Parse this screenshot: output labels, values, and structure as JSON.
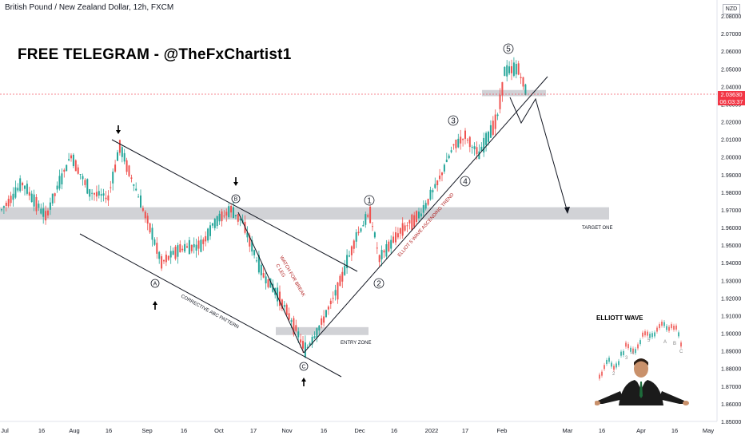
{
  "header": {
    "symbol_title": "British Pound / New Zealand Dollar, 12h, FXCM",
    "promo_text": "FREE TELEGRAM - @TheFxChartist1",
    "currency_box": "NZD"
  },
  "price_tag": {
    "price": "2.03630",
    "countdown": "06:03:37",
    "color": "#f23645"
  },
  "colors": {
    "bull": "#26a69a",
    "bear": "#ef5350",
    "zone": "#c9cacf",
    "line": "#131722",
    "annotation_red": "#b22222"
  },
  "annotations": {
    "target": "TARGET ONE",
    "entry": "ENTRY ZONE",
    "corrective": "CORRECTIVE ABC PATTERN",
    "watch": "WATCH FOR BREAK",
    "cleg": "C LEG",
    "trend": "ELLIOT 5 WAVE ASCENDING TREND"
  },
  "wave_labels": [
    "A",
    "B",
    "C",
    "1",
    "2",
    "3",
    "4",
    "5"
  ],
  "inset": {
    "title": "ELLIOTT WAVE",
    "labels": [
      "2",
      "3",
      "4",
      "5",
      "A",
      "B",
      "C"
    ]
  },
  "chart_data": {
    "type": "candlestick",
    "title": "British Pound / New Zealand Dollar, 12h, FXCM",
    "y_axis": {
      "ticks": [
        "2.08000",
        "2.07000",
        "2.06000",
        "2.05000",
        "2.04000",
        "2.03000",
        "2.02000",
        "2.01000",
        "2.00000",
        "1.99000",
        "1.98000",
        "1.97000",
        "1.96000",
        "1.95000",
        "1.94000",
        "1.93000",
        "1.92000",
        "1.91000",
        "1.90000",
        "1.89000",
        "1.88000",
        "1.87000",
        "1.86000",
        "1.85000"
      ],
      "range": [
        1.85,
        2.085
      ],
      "position": "right"
    },
    "x_axis": {
      "ticks": [
        "Jul",
        "16",
        "Aug",
        "16",
        "Sep",
        "16",
        "Oct",
        "17",
        "Nov",
        "16",
        "Dec",
        "16",
        "2022",
        "17",
        "Feb",
        "Mar",
        "16",
        "Apr",
        "16",
        "May"
      ]
    },
    "current_price": 2.0363,
    "zones": [
      {
        "label": "TARGET ONE",
        "from": 1.9645,
        "to": 1.9715
      },
      {
        "label": "ENTRY ZONE",
        "from": 1.899,
        "to": 1.9035
      },
      {
        "label": "",
        "from": 2.0345,
        "to": 2.038
      }
    ],
    "path_points": [
      {
        "date": "Jul 1",
        "price": 1.97
      },
      {
        "date": "Jul 10",
        "price": 1.985
      },
      {
        "date": "Jul 20",
        "price": 1.966
      },
      {
        "date": "Jul 31",
        "price": 2.001
      },
      {
        "date": "Aug 8",
        "price": 1.98
      },
      {
        "date": "Aug 16",
        "price": 1.977
      },
      {
        "date": "Aug 21",
        "price": 2.006
      },
      {
        "date": "Aug 27",
        "price": 1.985
      },
      {
        "date": "Sep 3",
        "price": 1.96
      },
      {
        "date": "Sep 8",
        "price": 1.94
      },
      {
        "date": "Sep 16",
        "price": 1.948
      },
      {
        "date": "Sep 25",
        "price": 1.95
      },
      {
        "date": "Oct 1",
        "price": 1.963
      },
      {
        "date": "Oct 8",
        "price": 1.97
      },
      {
        "date": "Oct 13",
        "price": 1.963
      },
      {
        "date": "Oct 21",
        "price": 1.935
      },
      {
        "date": "Oct 29",
        "price": 1.92
      },
      {
        "date": "Nov 4",
        "price": 1.905
      },
      {
        "date": "Nov 9",
        "price": 1.89
      },
      {
        "date": "Nov 15",
        "price": 1.903
      },
      {
        "date": "Nov 23",
        "price": 1.925
      },
      {
        "date": "Dec 1",
        "price": 1.955
      },
      {
        "date": "Dec 7",
        "price": 1.968
      },
      {
        "date": "Dec 11",
        "price": 1.942
      },
      {
        "date": "Dec 20",
        "price": 1.958
      },
      {
        "date": "Dec 29",
        "price": 1.968
      },
      {
        "date": "Jan 5",
        "price": 1.985
      },
      {
        "date": "Jan 12",
        "price": 2.006
      },
      {
        "date": "Jan 17",
        "price": 2.012
      },
      {
        "date": "Jan 23",
        "price": 2.001
      },
      {
        "date": "Jan 31",
        "price": 2.023
      },
      {
        "date": "Feb 3",
        "price": 2.048
      },
      {
        "date": "Feb 9",
        "price": 2.05
      },
      {
        "date": "Feb 12",
        "price": 2.038
      }
    ]
  }
}
